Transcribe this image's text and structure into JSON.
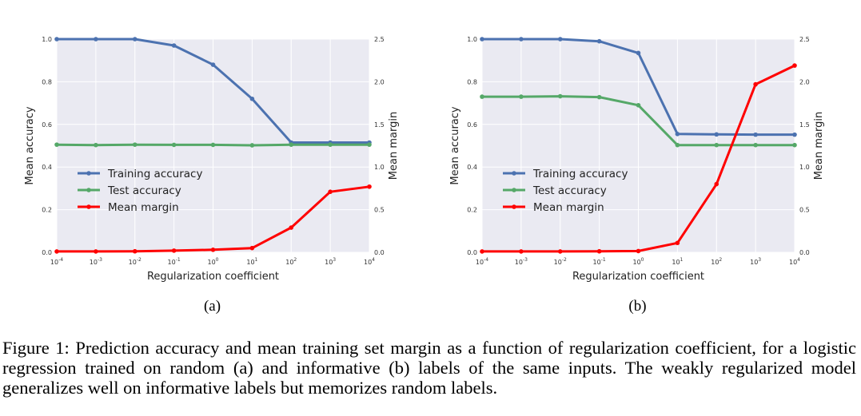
{
  "chart_data": [
    {
      "type": "line",
      "sublabel": "(a)",
      "x": [
        -4,
        -3,
        -2,
        -1,
        0,
        1,
        2,
        3,
        4
      ],
      "xticks": [
        {
          "b": "10",
          "e": "-4"
        },
        {
          "b": "10",
          "e": "-3"
        },
        {
          "b": "10",
          "e": "-2"
        },
        {
          "b": "10",
          "e": "-1"
        },
        {
          "b": "10",
          "e": "0"
        },
        {
          "b": "10",
          "e": "1"
        },
        {
          "b": "10",
          "e": "2"
        },
        {
          "b": "10",
          "e": "3"
        },
        {
          "b": "10",
          "e": "4"
        }
      ],
      "xscale": "log",
      "xlabel": "Regularization coefficient",
      "ylabel": "Mean accuracy",
      "y2label": "Mean margin",
      "ylim": [
        0,
        1
      ],
      "y2lim": [
        0,
        2.5
      ],
      "yticks": [
        "0.0",
        "0.2",
        "0.4",
        "0.6",
        "0.8",
        "1.0"
      ],
      "y2ticks": [
        "0.0",
        "0.5",
        "1.0",
        "1.5",
        "2.0",
        "2.5"
      ],
      "grid": true,
      "legend": "center-left",
      "series": [
        {
          "name": "Training accuracy",
          "axis": "left",
          "color": "#4c72b0",
          "values": [
            1.0,
            1.0,
            1.0,
            0.97,
            0.88,
            0.72,
            0.515,
            0.515,
            0.515
          ]
        },
        {
          "name": "Test accuracy",
          "axis": "left",
          "color": "#55a868",
          "values": [
            0.505,
            0.503,
            0.505,
            0.504,
            0.504,
            0.502,
            0.505,
            0.505,
            0.505
          ]
        },
        {
          "name": "Mean margin",
          "axis": "right",
          "color": "#ff0000",
          "values": [
            0.01,
            0.01,
            0.012,
            0.02,
            0.03,
            0.05,
            0.29,
            0.71,
            0.77
          ]
        }
      ]
    },
    {
      "type": "line",
      "sublabel": "(b)",
      "x": [
        -4,
        -3,
        -2,
        -1,
        0,
        1,
        2,
        3,
        4
      ],
      "xticks": [
        {
          "b": "10",
          "e": "-4"
        },
        {
          "b": "10",
          "e": "-3"
        },
        {
          "b": "10",
          "e": "-2"
        },
        {
          "b": "10",
          "e": "-1"
        },
        {
          "b": "10",
          "e": "0"
        },
        {
          "b": "10",
          "e": "1"
        },
        {
          "b": "10",
          "e": "2"
        },
        {
          "b": "10",
          "e": "3"
        },
        {
          "b": "10",
          "e": "4"
        }
      ],
      "xscale": "log",
      "xlabel": "Regularization coefficient",
      "ylabel": "Mean accuracy",
      "y2label": "Mean margin",
      "ylim": [
        0,
        1
      ],
      "y2lim": [
        0,
        2.5
      ],
      "yticks": [
        "0.0",
        "0.2",
        "0.4",
        "0.6",
        "0.8",
        "1.0"
      ],
      "y2ticks": [
        "0.0",
        "0.5",
        "1.0",
        "1.5",
        "2.0",
        "2.5"
      ],
      "grid": true,
      "legend": "center-left",
      "series": [
        {
          "name": "Training accuracy",
          "axis": "left",
          "color": "#4c72b0",
          "values": [
            1.0,
            1.0,
            1.0,
            0.99,
            0.935,
            0.555,
            0.553,
            0.552,
            0.552
          ]
        },
        {
          "name": "Test accuracy",
          "axis": "left",
          "color": "#55a868",
          "values": [
            0.73,
            0.73,
            0.732,
            0.728,
            0.69,
            0.503,
            0.503,
            0.503,
            0.503
          ]
        },
        {
          "name": "Mean margin",
          "axis": "right",
          "color": "#ff0000",
          "values": [
            0.01,
            0.01,
            0.01,
            0.012,
            0.015,
            0.11,
            0.8,
            1.97,
            2.19
          ]
        }
      ]
    }
  ],
  "caption": "Figure 1: Prediction accuracy and mean training set margin as a function of regularization coefficient, for a logistic regression trained on random (a) and informative (b) labels of the same inputs. The weakly regularized model generalizes well on informative labels but memorizes random labels."
}
